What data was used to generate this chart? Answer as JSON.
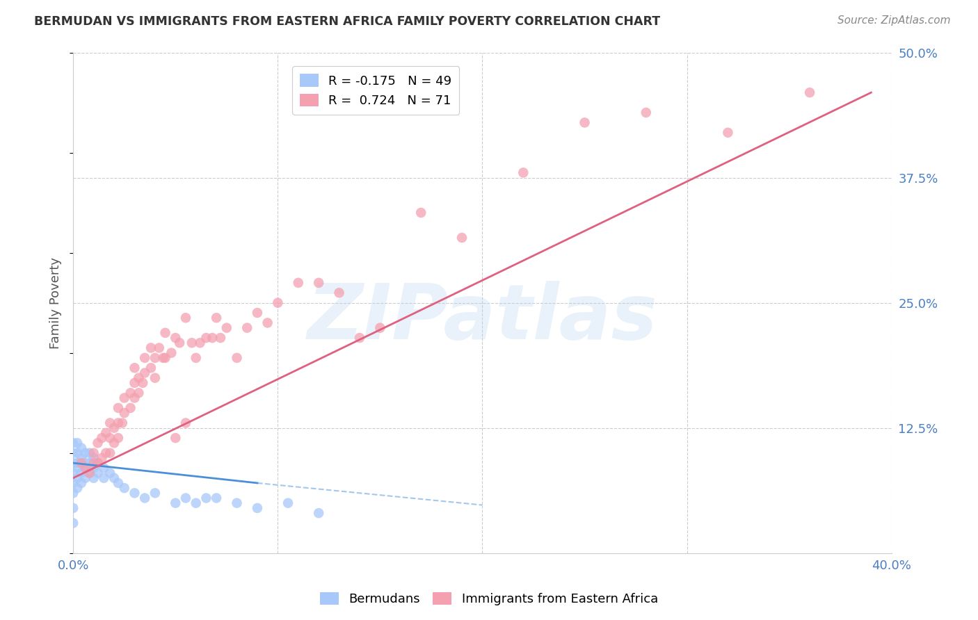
{
  "title": "BERMUDAN VS IMMIGRANTS FROM EASTERN AFRICA FAMILY POVERTY CORRELATION CHART",
  "source": "Source: ZipAtlas.com",
  "ylabel": "Family Poverty",
  "watermark": "ZIPatlas",
  "xlim": [
    0.0,
    0.4
  ],
  "ylim": [
    0.0,
    0.5
  ],
  "xticks": [
    0.0,
    0.1,
    0.2,
    0.3,
    0.4
  ],
  "xtick_labels": [
    "0.0%",
    "",
    "",
    "",
    "40.0%"
  ],
  "ytick_labels": [
    "12.5%",
    "25.0%",
    "37.5%",
    "50.0%"
  ],
  "yticks": [
    0.125,
    0.25,
    0.375,
    0.5
  ],
  "bermudans_color": "#a8c8fa",
  "immigrants_color": "#f4a0b0",
  "bermudans_line_color": "#4a90d9",
  "immigrants_line_color": "#e06080",
  "bermudans_scatter": {
    "x": [
      0.0,
      0.0,
      0.0,
      0.0,
      0.0,
      0.0,
      0.0,
      0.0,
      0.002,
      0.002,
      0.002,
      0.002,
      0.002,
      0.002,
      0.004,
      0.004,
      0.004,
      0.004,
      0.004,
      0.006,
      0.006,
      0.006,
      0.006,
      0.008,
      0.008,
      0.008,
      0.01,
      0.01,
      0.01,
      0.012,
      0.012,
      0.015,
      0.015,
      0.018,
      0.02,
      0.022,
      0.025,
      0.03,
      0.035,
      0.04,
      0.05,
      0.055,
      0.06,
      0.065,
      0.07,
      0.08,
      0.09,
      0.105,
      0.12
    ],
    "y": [
      0.03,
      0.045,
      0.06,
      0.07,
      0.08,
      0.09,
      0.1,
      0.11,
      0.065,
      0.075,
      0.085,
      0.09,
      0.1,
      0.11,
      0.07,
      0.08,
      0.09,
      0.095,
      0.105,
      0.075,
      0.085,
      0.09,
      0.1,
      0.08,
      0.09,
      0.1,
      0.075,
      0.085,
      0.095,
      0.08,
      0.09,
      0.075,
      0.085,
      0.08,
      0.075,
      0.07,
      0.065,
      0.06,
      0.055,
      0.06,
      0.05,
      0.055,
      0.05,
      0.055,
      0.055,
      0.05,
      0.045,
      0.05,
      0.04
    ]
  },
  "immigrants_scatter": {
    "x": [
      0.004,
      0.006,
      0.008,
      0.01,
      0.01,
      0.012,
      0.012,
      0.014,
      0.014,
      0.016,
      0.016,
      0.018,
      0.018,
      0.018,
      0.02,
      0.02,
      0.022,
      0.022,
      0.022,
      0.024,
      0.025,
      0.025,
      0.028,
      0.028,
      0.03,
      0.03,
      0.03,
      0.032,
      0.032,
      0.034,
      0.035,
      0.035,
      0.038,
      0.038,
      0.04,
      0.04,
      0.042,
      0.044,
      0.045,
      0.045,
      0.048,
      0.05,
      0.05,
      0.052,
      0.055,
      0.055,
      0.058,
      0.06,
      0.062,
      0.065,
      0.068,
      0.07,
      0.072,
      0.075,
      0.08,
      0.085,
      0.09,
      0.095,
      0.1,
      0.11,
      0.12,
      0.13,
      0.14,
      0.15,
      0.17,
      0.19,
      0.22,
      0.25,
      0.28,
      0.32,
      0.36
    ],
    "y": [
      0.09,
      0.085,
      0.08,
      0.09,
      0.1,
      0.09,
      0.11,
      0.095,
      0.115,
      0.1,
      0.12,
      0.1,
      0.115,
      0.13,
      0.11,
      0.125,
      0.115,
      0.13,
      0.145,
      0.13,
      0.14,
      0.155,
      0.145,
      0.16,
      0.155,
      0.17,
      0.185,
      0.16,
      0.175,
      0.17,
      0.18,
      0.195,
      0.185,
      0.205,
      0.195,
      0.175,
      0.205,
      0.195,
      0.22,
      0.195,
      0.2,
      0.215,
      0.115,
      0.21,
      0.235,
      0.13,
      0.21,
      0.195,
      0.21,
      0.215,
      0.215,
      0.235,
      0.215,
      0.225,
      0.195,
      0.225,
      0.24,
      0.23,
      0.25,
      0.27,
      0.27,
      0.26,
      0.215,
      0.225,
      0.34,
      0.315,
      0.38,
      0.43,
      0.44,
      0.42,
      0.46
    ]
  },
  "bermudans_trend": {
    "x": [
      0.0,
      0.09
    ],
    "y": [
      0.09,
      0.07
    ]
  },
  "bermudans_dashed_ext": {
    "x": [
      0.09,
      0.2
    ],
    "y": [
      0.07,
      0.048
    ]
  },
  "immigrants_trend": {
    "x": [
      0.0,
      0.39
    ],
    "y": [
      0.075,
      0.46
    ]
  },
  "background_color": "#ffffff",
  "grid_color": "#cccccc",
  "title_color": "#333333",
  "axis_label_color": "#555555",
  "tick_color": "#4a7fc1",
  "source_color": "#888888"
}
